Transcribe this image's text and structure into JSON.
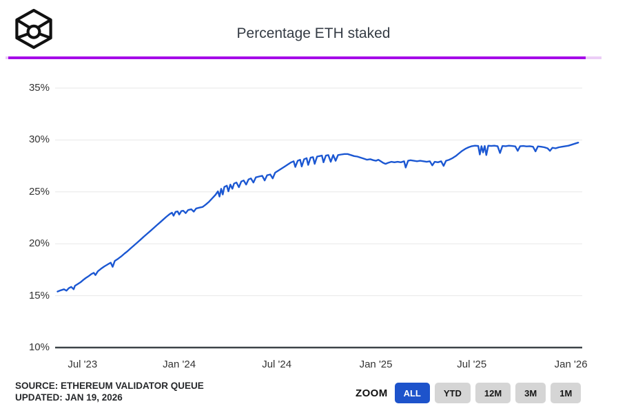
{
  "header": {
    "title": "Percentage ETH staked",
    "logo_icon": "wireframe-cube-with-circle"
  },
  "progress_bar": {
    "track_color": "#eccdf6",
    "fill_color": "#a50be8"
  },
  "chart_data": {
    "type": "line",
    "title": "Percentage ETH staked",
    "xlabel": "",
    "ylabel": "",
    "grid": true,
    "legend_position": "none",
    "x_unit": "months since May 2023",
    "xlim": [
      -0.15,
      32.55
    ],
    "ylim": [
      10,
      35
    ],
    "xticks": [
      {
        "t": 1.55,
        "label": "Jul '23"
      },
      {
        "t": 7.55,
        "label": "Jan '24"
      },
      {
        "t": 13.6,
        "label": "Jul '24"
      },
      {
        "t": 19.75,
        "label": "Jan '25"
      },
      {
        "t": 25.7,
        "label": "Jul '25"
      },
      {
        "t": 31.85,
        "label": "Jan '26"
      }
    ],
    "yticks": [
      {
        "v": 10,
        "label": "10%",
        "axis": true
      },
      {
        "v": 15,
        "label": "15%"
      },
      {
        "v": 20,
        "label": "20%"
      },
      {
        "v": 25,
        "label": "25%"
      },
      {
        "v": 30,
        "label": "30%"
      },
      {
        "v": 35,
        "label": "35%"
      }
    ],
    "series": [
      {
        "name": "Percentage ETH staked",
        "color": "#1b57d2",
        "points": [
          [
            0,
            15.4
          ],
          [
            0.2,
            15.52
          ],
          [
            0.4,
            15.62
          ],
          [
            0.55,
            15.48
          ],
          [
            0.7,
            15.72
          ],
          [
            0.85,
            15.85
          ],
          [
            1.0,
            15.62
          ],
          [
            1.08,
            15.95
          ],
          [
            1.25,
            16.12
          ],
          [
            1.45,
            16.32
          ],
          [
            1.6,
            16.52
          ],
          [
            1.75,
            16.7
          ],
          [
            1.95,
            16.9
          ],
          [
            2.1,
            17.08
          ],
          [
            2.25,
            17.2
          ],
          [
            2.35,
            16.98
          ],
          [
            2.5,
            17.35
          ],
          [
            2.7,
            17.6
          ],
          [
            2.9,
            17.82
          ],
          [
            3.1,
            18.0
          ],
          [
            3.3,
            18.18
          ],
          [
            3.42,
            17.78
          ],
          [
            3.55,
            18.35
          ],
          [
            3.75,
            18.55
          ],
          [
            3.95,
            18.78
          ],
          [
            4.15,
            19.05
          ],
          [
            4.35,
            19.3
          ],
          [
            4.55,
            19.58
          ],
          [
            4.75,
            19.85
          ],
          [
            4.95,
            20.12
          ],
          [
            5.15,
            20.4
          ],
          [
            5.35,
            20.68
          ],
          [
            5.55,
            20.95
          ],
          [
            5.75,
            21.22
          ],
          [
            5.95,
            21.5
          ],
          [
            6.15,
            21.78
          ],
          [
            6.35,
            22.05
          ],
          [
            6.55,
            22.32
          ],
          [
            6.75,
            22.6
          ],
          [
            6.95,
            22.85
          ],
          [
            7.1,
            23.0
          ],
          [
            7.2,
            22.7
          ],
          [
            7.32,
            23.08
          ],
          [
            7.45,
            23.12
          ],
          [
            7.55,
            22.82
          ],
          [
            7.68,
            23.15
          ],
          [
            7.8,
            23.18
          ],
          [
            7.95,
            22.95
          ],
          [
            8.1,
            23.25
          ],
          [
            8.3,
            23.32
          ],
          [
            8.45,
            23.1
          ],
          [
            8.6,
            23.4
          ],
          [
            8.8,
            23.48
          ],
          [
            9.0,
            23.55
          ],
          [
            9.2,
            23.78
          ],
          [
            9.4,
            24.05
          ],
          [
            9.6,
            24.38
          ],
          [
            9.8,
            24.72
          ],
          [
            9.95,
            25.05
          ],
          [
            10.05,
            24.55
          ],
          [
            10.15,
            25.3
          ],
          [
            10.25,
            24.75
          ],
          [
            10.35,
            25.48
          ],
          [
            10.5,
            25.6
          ],
          [
            10.6,
            25.05
          ],
          [
            10.72,
            25.7
          ],
          [
            10.85,
            25.3
          ],
          [
            10.95,
            25.8
          ],
          [
            11.1,
            25.9
          ],
          [
            11.25,
            25.45
          ],
          [
            11.4,
            26.0
          ],
          [
            11.55,
            26.1
          ],
          [
            11.7,
            25.7
          ],
          [
            11.85,
            26.2
          ],
          [
            12.0,
            26.3
          ],
          [
            12.15,
            25.9
          ],
          [
            12.3,
            26.4
          ],
          [
            12.5,
            26.48
          ],
          [
            12.7,
            26.55
          ],
          [
            12.85,
            26.1
          ],
          [
            13.0,
            26.6
          ],
          [
            13.2,
            26.68
          ],
          [
            13.35,
            26.3
          ],
          [
            13.5,
            26.85
          ],
          [
            13.7,
            27.05
          ],
          [
            13.9,
            27.25
          ],
          [
            14.1,
            27.45
          ],
          [
            14.3,
            27.65
          ],
          [
            14.5,
            27.85
          ],
          [
            14.65,
            27.95
          ],
          [
            14.75,
            27.4
          ],
          [
            14.9,
            28.0
          ],
          [
            15.05,
            28.1
          ],
          [
            15.15,
            27.45
          ],
          [
            15.3,
            28.15
          ],
          [
            15.45,
            28.25
          ],
          [
            15.55,
            27.6
          ],
          [
            15.7,
            28.3
          ],
          [
            15.85,
            28.35
          ],
          [
            15.95,
            27.7
          ],
          [
            16.1,
            28.4
          ],
          [
            16.25,
            28.45
          ],
          [
            16.4,
            28.5
          ],
          [
            16.5,
            27.85
          ],
          [
            16.65,
            28.5
          ],
          [
            16.8,
            28.55
          ],
          [
            16.95,
            27.9
          ],
          [
            17.1,
            28.55
          ],
          [
            17.25,
            28.0
          ],
          [
            17.4,
            28.55
          ],
          [
            17.6,
            28.6
          ],
          [
            17.8,
            28.65
          ],
          [
            18.0,
            28.65
          ],
          [
            18.2,
            28.55
          ],
          [
            18.4,
            28.45
          ],
          [
            18.6,
            28.4
          ],
          [
            18.8,
            28.3
          ],
          [
            19.0,
            28.2
          ],
          [
            19.2,
            28.1
          ],
          [
            19.4,
            28.15
          ],
          [
            19.6,
            28.05
          ],
          [
            19.75,
            28.0
          ],
          [
            19.9,
            28.1
          ],
          [
            20.05,
            27.95
          ],
          [
            20.2,
            27.8
          ],
          [
            20.35,
            27.7
          ],
          [
            20.5,
            27.8
          ],
          [
            20.7,
            27.9
          ],
          [
            20.9,
            27.85
          ],
          [
            21.1,
            27.9
          ],
          [
            21.3,
            27.85
          ],
          [
            21.5,
            27.95
          ],
          [
            21.6,
            27.35
          ],
          [
            21.75,
            28.0
          ],
          [
            21.9,
            28.05
          ],
          [
            22.1,
            28.0
          ],
          [
            22.3,
            27.95
          ],
          [
            22.5,
            28.0
          ],
          [
            22.7,
            27.95
          ],
          [
            22.9,
            27.9
          ],
          [
            23.1,
            27.95
          ],
          [
            23.25,
            27.55
          ],
          [
            23.4,
            27.9
          ],
          [
            23.6,
            27.85
          ],
          [
            23.8,
            27.95
          ],
          [
            23.95,
            27.5
          ],
          [
            24.1,
            28.0
          ],
          [
            24.3,
            28.1
          ],
          [
            24.5,
            28.25
          ],
          [
            24.7,
            28.45
          ],
          [
            24.9,
            28.7
          ],
          [
            25.1,
            28.95
          ],
          [
            25.3,
            29.15
          ],
          [
            25.5,
            29.3
          ],
          [
            25.7,
            29.4
          ],
          [
            25.9,
            29.45
          ],
          [
            26.1,
            29.42
          ],
          [
            26.2,
            28.6
          ],
          [
            26.3,
            29.4
          ],
          [
            26.4,
            28.8
          ],
          [
            26.5,
            29.42
          ],
          [
            26.6,
            28.55
          ],
          [
            26.72,
            29.45
          ],
          [
            26.9,
            29.42
          ],
          [
            27.1,
            29.45
          ],
          [
            27.3,
            29.4
          ],
          [
            27.45,
            28.75
          ],
          [
            27.6,
            29.42
          ],
          [
            27.8,
            29.4
          ],
          [
            28.0,
            29.45
          ],
          [
            28.2,
            29.42
          ],
          [
            28.4,
            29.38
          ],
          [
            28.55,
            28.95
          ],
          [
            28.7,
            29.4
          ],
          [
            28.9,
            29.42
          ],
          [
            29.1,
            29.38
          ],
          [
            29.3,
            29.4
          ],
          [
            29.5,
            29.35
          ],
          [
            29.65,
            28.9
          ],
          [
            29.8,
            29.38
          ],
          [
            30.0,
            29.35
          ],
          [
            30.2,
            29.3
          ],
          [
            30.4,
            29.2
          ],
          [
            30.55,
            28.95
          ],
          [
            30.7,
            29.25
          ],
          [
            30.9,
            29.2
          ],
          [
            31.1,
            29.3
          ],
          [
            31.3,
            29.35
          ],
          [
            31.5,
            29.4
          ],
          [
            31.7,
            29.45
          ],
          [
            31.9,
            29.55
          ],
          [
            32.1,
            29.65
          ],
          [
            32.3,
            29.75
          ]
        ]
      }
    ]
  },
  "footer": {
    "source_line": "SOURCE: ETHEREUM VALIDATOR QUEUE",
    "updated_line": "UPDATED: JAN 19, 2026"
  },
  "zoom": {
    "label": "ZOOM",
    "buttons": [
      "ALL",
      "YTD",
      "12M",
      "3M",
      "1M"
    ],
    "active": "ALL",
    "active_bg": "#1d53cb",
    "inactive_bg": "#d5d5d5"
  }
}
